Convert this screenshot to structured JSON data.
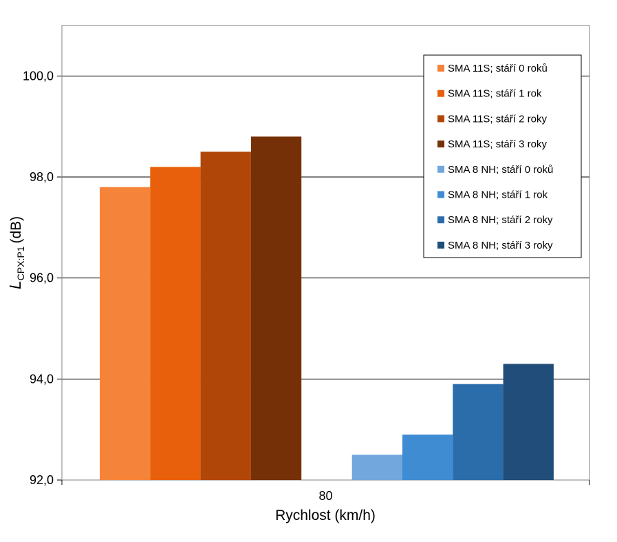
{
  "chart_data": {
    "type": "bar",
    "categories": [
      "80"
    ],
    "xlabel": "Rychlost (km/h)",
    "ylabel_main": "L",
    "ylabel_sub": "CPX:P1",
    "ylabel_unit": "(dB)",
    "ylim": [
      92,
      101
    ],
    "yticks": [
      92,
      94,
      96,
      98,
      100
    ],
    "ytick_labels": [
      "92,0",
      "94,0",
      "96,0",
      "98,0",
      "100,0"
    ],
    "grid": true,
    "legend_position": "top-right",
    "series": [
      {
        "name": "SMA 11S; stáří 0 roků",
        "values": [
          97.8
        ],
        "color": "#F5833A"
      },
      {
        "name": "SMA 11S; stáří 1 rok",
        "values": [
          98.2
        ],
        "color": "#E8600C"
      },
      {
        "name": "SMA 11S; stáří 2 roky",
        "values": [
          98.5
        ],
        "color": "#B04708"
      },
      {
        "name": "SMA 11S; stáří 3 roky",
        "values": [
          98.8
        ],
        "color": "#763007"
      },
      {
        "name": "SMA 8 NH; stáří 0 roků",
        "values": [
          92.5
        ],
        "color": "#71A7DC"
      },
      {
        "name": "SMA 8 NH; stáří 1 rok",
        "values": [
          92.9
        ],
        "color": "#3F8CD2"
      },
      {
        "name": "SMA 8 NH; stáří 2 roky",
        "values": [
          93.9
        ],
        "color": "#2B6CAA"
      },
      {
        "name": "SMA 8 NH; stáří 3 roky",
        "values": [
          94.3
        ],
        "color": "#204D79"
      }
    ]
  }
}
